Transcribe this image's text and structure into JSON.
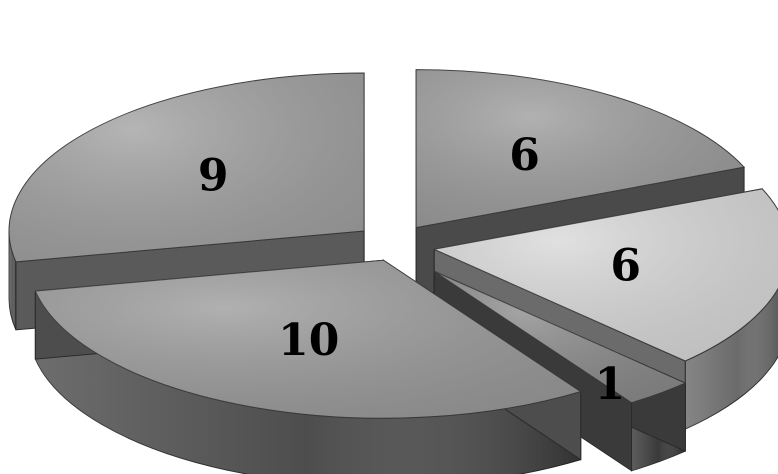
{
  "chart_data": {
    "type": "pie",
    "style": "3d-exploded",
    "labels_shown": "values",
    "slices": [
      {
        "value": 6,
        "color": "#9b9b9b",
        "side_color": "#4a4a4a"
      },
      {
        "value": 6,
        "color": "#d8d8d8",
        "side_color": "#6b6b6b"
      },
      {
        "value": 1,
        "color": "#8a8a8a",
        "side_color": "#3a3a3a"
      },
      {
        "value": 10,
        "color": "#9a9a9a",
        "side_color": "#4d4d4d"
      },
      {
        "value": 9,
        "color": "#a0a0a0",
        "side_color": "#5a5a5a"
      }
    ],
    "title": "",
    "legend": "none"
  }
}
